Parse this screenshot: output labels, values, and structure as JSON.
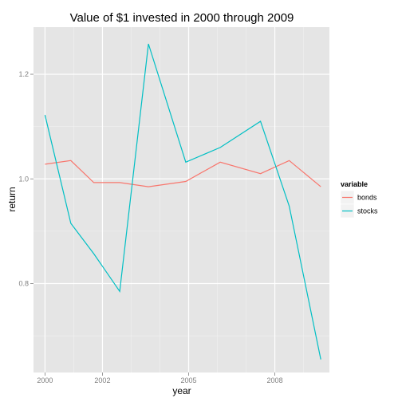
{
  "chart_data": {
    "type": "line",
    "title": "Value of $1 invested in 2000 through 2009",
    "xlabel": "year",
    "ylabel": "return",
    "xlim": [
      1999.6,
      2009.9
    ],
    "ylim": [
      0.63,
      1.29
    ],
    "x_ticks": [
      {
        "value": 2000,
        "label": "2000"
      },
      {
        "value": 2002,
        "label": "2002"
      },
      {
        "value": 2005,
        "label": "2005"
      },
      {
        "value": 2008,
        "label": "2008"
      }
    ],
    "y_ticks": [
      {
        "value": 0.8,
        "label": "0.8"
      },
      {
        "value": 1.0,
        "label": "1.0"
      },
      {
        "value": 1.2,
        "label": "1.2"
      }
    ],
    "grid": true,
    "legend": {
      "title": "variable",
      "position": "right"
    },
    "series": [
      {
        "name": "bonds",
        "color": "#F8766D",
        "x": [
          2000,
          2000.9,
          2001.7,
          2002.6,
          2003.6,
          2004.9,
          2006.1,
          2007.5,
          2008.5,
          2009.6
        ],
        "y": [
          1.028,
          1.035,
          0.993,
          0.993,
          0.985,
          0.995,
          1.032,
          1.01,
          1.035,
          0.985
        ]
      },
      {
        "name": "stocks",
        "color": "#00BFC4",
        "x": [
          2000,
          2000.9,
          2001.7,
          2002.6,
          2003.6,
          2004.9,
          2006.1,
          2007.5,
          2008.5,
          2009.6
        ],
        "y": [
          1.122,
          0.915,
          0.857,
          0.785,
          1.258,
          1.032,
          1.06,
          1.11,
          0.948,
          0.655
        ]
      }
    ]
  }
}
